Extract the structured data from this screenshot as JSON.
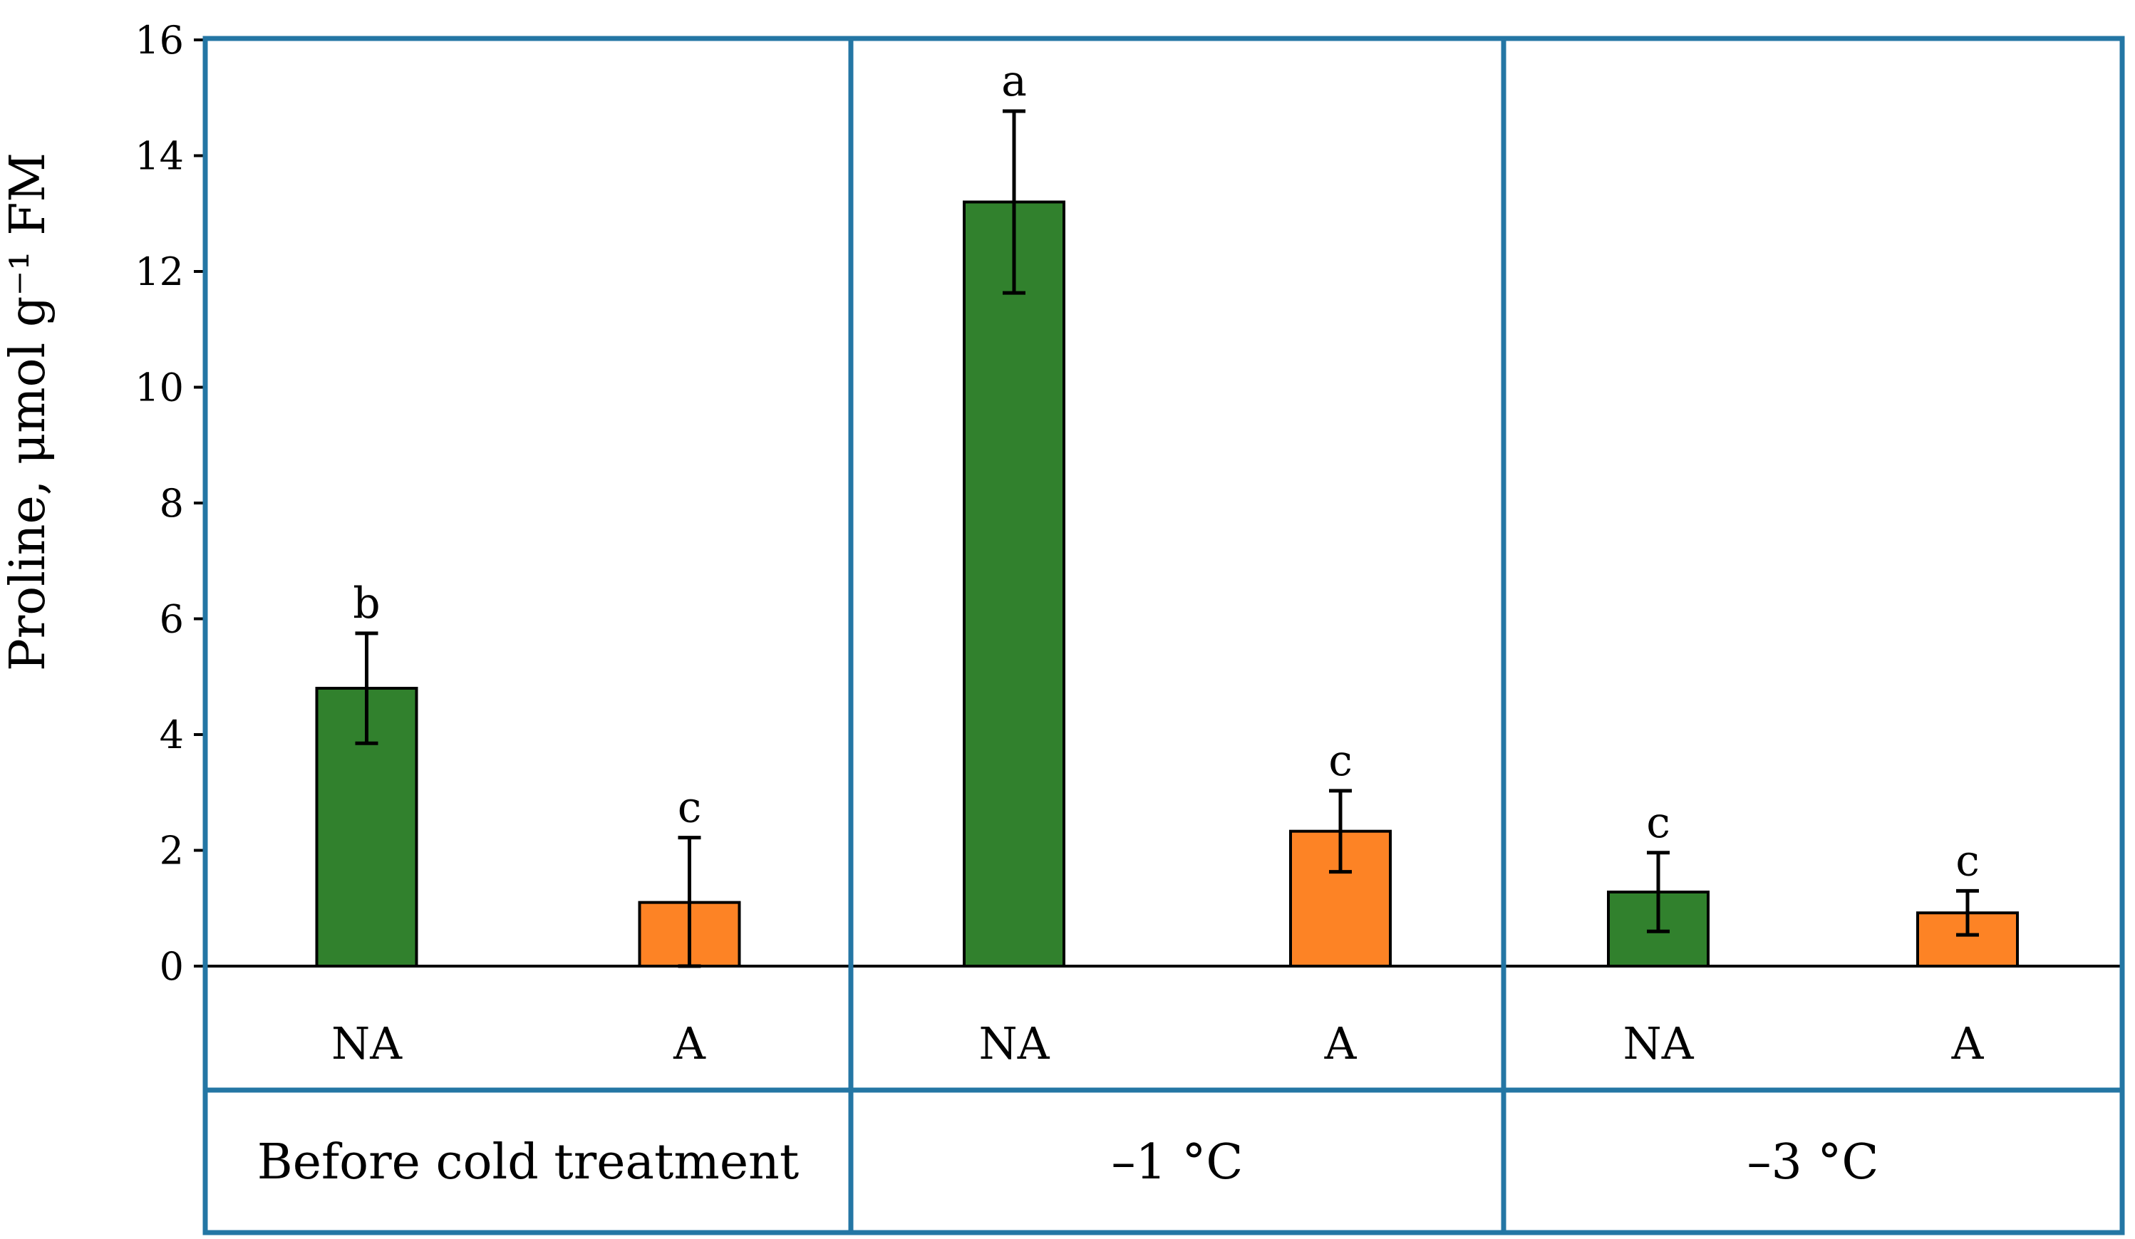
{
  "chart_data": {
    "type": "bar",
    "ylabel": "Proline, μmol g⁻¹ FM",
    "ylim": [
      0,
      16
    ],
    "yticks": [
      0,
      2,
      4,
      6,
      8,
      10,
      12,
      14,
      16
    ],
    "groups": [
      {
        "label": "Before cold treatment",
        "bars": [
          {
            "category": "NA",
            "value": 4.8,
            "error": 0.95,
            "significance": "b",
            "series": "NA"
          },
          {
            "category": "A",
            "value": 1.1,
            "error": 1.12,
            "significance": "c",
            "series": "A"
          }
        ]
      },
      {
        "label": "–1 °C",
        "bars": [
          {
            "category": "NA",
            "value": 13.2,
            "error": 1.57,
            "significance": "a",
            "series": "NA"
          },
          {
            "category": "A",
            "value": 2.33,
            "error": 0.7,
            "significance": "c",
            "series": "A"
          }
        ]
      },
      {
        "label": "–3 °C",
        "bars": [
          {
            "category": "NA",
            "value": 1.28,
            "error": 0.68,
            "significance": "c",
            "series": "NA"
          },
          {
            "category": "A",
            "value": 0.92,
            "error": 0.38,
            "significance": "c",
            "series": "A"
          }
        ]
      }
    ],
    "series_colors": {
      "NA": "#31812d",
      "A": "#fd8325"
    },
    "panel_border_color": "#2476a4"
  }
}
